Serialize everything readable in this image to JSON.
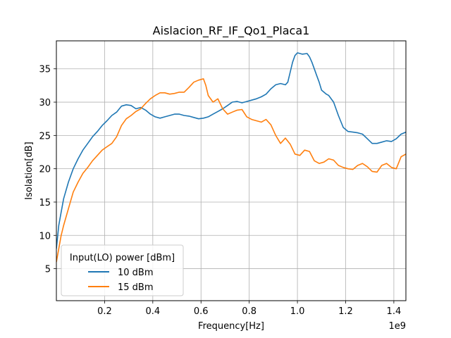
{
  "chart_data": {
    "type": "line",
    "title": "Aislacion_RF_IF_Qo1_Placa1",
    "xlabel": "Frequency[Hz]",
    "ylabel": "Isolation[dB]",
    "x_offset_label": "1e9",
    "xlim": [
      0.0,
      1.45
    ],
    "ylim": [
      0.2,
      39.2
    ],
    "x_ticks": [
      0.2,
      0.4,
      0.6,
      0.8,
      1.0,
      1.2,
      1.4
    ],
    "x_tick_labels": [
      "0.2",
      "0.4",
      "0.6",
      "0.8",
      "1.0",
      "1.2",
      "1.4"
    ],
    "y_ticks": [
      5,
      10,
      15,
      20,
      25,
      30,
      35
    ],
    "y_tick_labels": [
      "5",
      "10",
      "15",
      "20",
      "25",
      "30",
      "35"
    ],
    "grid": true,
    "legend": {
      "title": "Input(LO) power [dBm]",
      "position": "lower-left"
    },
    "series": [
      {
        "name": "10 dBm",
        "color": "#1f77b4",
        "x": [
          0.0,
          0.01,
          0.02,
          0.03,
          0.05,
          0.07,
          0.09,
          0.11,
          0.13,
          0.15,
          0.17,
          0.19,
          0.21,
          0.23,
          0.25,
          0.27,
          0.29,
          0.31,
          0.33,
          0.35,
          0.37,
          0.39,
          0.41,
          0.43,
          0.45,
          0.47,
          0.49,
          0.51,
          0.53,
          0.55,
          0.57,
          0.59,
          0.61,
          0.63,
          0.65,
          0.67,
          0.69,
          0.71,
          0.73,
          0.75,
          0.77,
          0.79,
          0.81,
          0.83,
          0.85,
          0.87,
          0.89,
          0.91,
          0.93,
          0.95,
          0.96,
          0.97,
          0.98,
          0.99,
          1.0,
          1.02,
          1.04,
          1.05,
          1.06,
          1.07,
          1.08,
          1.09,
          1.1,
          1.12,
          1.13,
          1.15,
          1.17,
          1.19,
          1.21,
          1.23,
          1.25,
          1.27,
          1.29,
          1.31,
          1.33,
          1.35,
          1.37,
          1.39,
          1.41,
          1.43,
          1.45
        ],
        "y": [
          8.0,
          11.5,
          13.5,
          15.5,
          18.0,
          20.0,
          21.5,
          22.8,
          23.8,
          24.8,
          25.6,
          26.5,
          27.2,
          28.0,
          28.5,
          29.4,
          29.6,
          29.5,
          29.0,
          29.2,
          28.8,
          28.2,
          27.8,
          27.6,
          27.8,
          28.0,
          28.2,
          28.2,
          28.0,
          27.9,
          27.7,
          27.5,
          27.6,
          27.8,
          28.2,
          28.6,
          29.0,
          29.5,
          30.0,
          30.1,
          29.9,
          30.1,
          30.3,
          30.5,
          30.8,
          31.2,
          32.0,
          32.6,
          32.8,
          32.6,
          33.0,
          34.5,
          36.0,
          37.0,
          37.4,
          37.2,
          37.3,
          36.8,
          36.0,
          35.0,
          34.0,
          33.0,
          31.8,
          31.2,
          31.0,
          30.0,
          28.0,
          26.2,
          25.6,
          25.5,
          25.4,
          25.2,
          24.5,
          23.8,
          23.8,
          24.0,
          24.2,
          24.1,
          24.5,
          25.2,
          25.5
        ]
      },
      {
        "name": "15 dBm",
        "color": "#ff7f0e",
        "x": [
          0.0,
          0.01,
          0.02,
          0.03,
          0.05,
          0.07,
          0.09,
          0.11,
          0.13,
          0.15,
          0.17,
          0.19,
          0.21,
          0.23,
          0.25,
          0.27,
          0.29,
          0.31,
          0.33,
          0.35,
          0.37,
          0.39,
          0.41,
          0.43,
          0.45,
          0.47,
          0.49,
          0.51,
          0.53,
          0.55,
          0.57,
          0.59,
          0.61,
          0.62,
          0.63,
          0.65,
          0.67,
          0.69,
          0.71,
          0.73,
          0.75,
          0.77,
          0.79,
          0.81,
          0.83,
          0.85,
          0.87,
          0.89,
          0.91,
          0.93,
          0.95,
          0.97,
          0.99,
          1.01,
          1.03,
          1.05,
          1.07,
          1.09,
          1.11,
          1.13,
          1.15,
          1.17,
          1.19,
          1.21,
          1.23,
          1.25,
          1.27,
          1.29,
          1.31,
          1.33,
          1.35,
          1.37,
          1.39,
          1.41,
          1.43,
          1.45
        ],
        "y": [
          6.0,
          8.0,
          10.0,
          11.5,
          14.0,
          16.5,
          18.0,
          19.3,
          20.2,
          21.2,
          22.0,
          22.8,
          23.3,
          23.8,
          24.8,
          26.5,
          27.5,
          28.0,
          28.6,
          29.0,
          29.8,
          30.5,
          31.0,
          31.4,
          31.4,
          31.2,
          31.3,
          31.5,
          31.5,
          32.2,
          33.0,
          33.3,
          33.5,
          32.5,
          31.0,
          30.0,
          30.5,
          29.0,
          28.2,
          28.5,
          28.8,
          28.9,
          27.8,
          27.4,
          27.2,
          27.0,
          27.4,
          26.6,
          25.0,
          23.8,
          24.6,
          23.7,
          22.2,
          22.0,
          22.8,
          22.6,
          21.2,
          20.8,
          21.0,
          21.5,
          21.3,
          20.5,
          20.2,
          20.0,
          19.9,
          20.5,
          20.8,
          20.3,
          19.6,
          19.5,
          20.5,
          20.8,
          20.2,
          20.0,
          21.8,
          22.2
        ]
      }
    ]
  }
}
